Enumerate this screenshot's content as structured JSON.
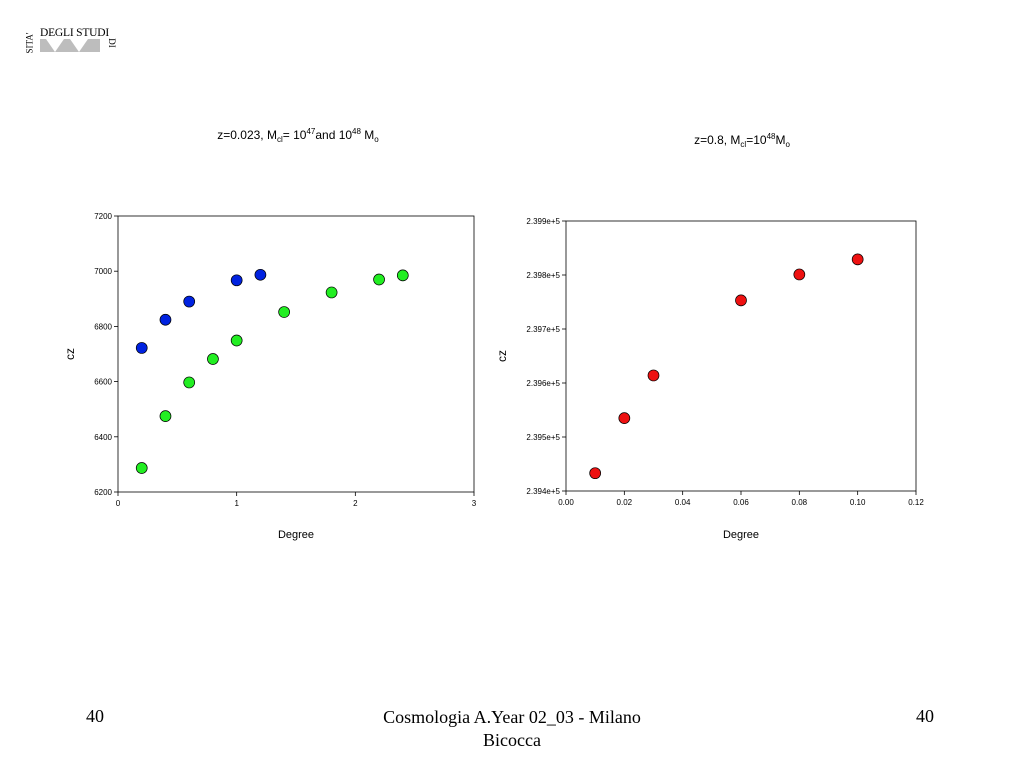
{
  "logo": {
    "line_top": "DEGLI STUDI",
    "left_vertical": "SITA'",
    "right_vertical": "DI"
  },
  "footer": {
    "page_left": "40",
    "center": "Cosmologia A.Year 02_03 - Milano Bicocca",
    "page_right": "40"
  },
  "chart_data": [
    {
      "type": "scatter",
      "title": {
        "parts": [
          {
            "t": "z=0.023, M"
          },
          {
            "t": "cl",
            "sub": true
          },
          {
            "t": "= 10"
          },
          {
            "t": "47",
            "sup": true
          },
          {
            "t": "and 10"
          },
          {
            "t": "48",
            "sup": true
          },
          {
            "t": " M"
          },
          {
            "t": "o",
            "sub": true
          }
        ]
      },
      "xlabel": "Degree",
      "ylabel": "cz",
      "xlim": [
        0,
        3
      ],
      "ylim": [
        6200,
        7200
      ],
      "xticks": [
        0,
        1,
        2,
        3
      ],
      "xtick_labels": [
        "0",
        "1",
        "2",
        "3"
      ],
      "yticks": [
        6200,
        6400,
        6600,
        6800,
        7000,
        7200
      ],
      "ytick_labels": [
        "6200",
        "6400",
        "6600",
        "6800",
        "7000",
        "7200"
      ],
      "grid": false,
      "series": [
        {
          "color": "#0022e0",
          "points": [
            [
              0.2,
              6722
            ],
            [
              0.4,
              6824
            ],
            [
              0.6,
              6890
            ],
            [
              1.0,
              6967
            ],
            [
              1.2,
              6987
            ]
          ]
        },
        {
          "color": "#22ee22",
          "points": [
            [
              0.2,
              6287
            ],
            [
              0.4,
              6475
            ],
            [
              0.6,
              6597
            ],
            [
              0.8,
              6682
            ],
            [
              1.0,
              6749
            ],
            [
              1.4,
              6852
            ],
            [
              1.8,
              6923
            ],
            [
              2.2,
              6970
            ],
            [
              2.4,
              6985
            ]
          ]
        }
      ]
    },
    {
      "type": "scatter",
      "title": {
        "parts": [
          {
            "t": "z=0.8, M"
          },
          {
            "t": "cl",
            "sub": true
          },
          {
            "t": "=10"
          },
          {
            "t": "48",
            "sup": true
          },
          {
            "t": "M"
          },
          {
            "t": "o",
            "sub": true
          }
        ]
      },
      "xlabel": "Degree",
      "ylabel": "cz",
      "xlim": [
        0.0,
        0.12
      ],
      "ylim": [
        239400,
        239900
      ],
      "xticks": [
        0.0,
        0.02,
        0.04,
        0.06,
        0.08,
        0.1,
        0.12
      ],
      "xtick_labels": [
        "0.00",
        "0.02",
        "0.04",
        "0.06",
        "0.08",
        "0.10",
        "0.12"
      ],
      "yticks": [
        239400,
        239500,
        239600,
        239700,
        239800,
        239900
      ],
      "ytick_labels": [
        "2.394e+5",
        "2.395e+5",
        "2.396e+5",
        "2.397e+5",
        "2.398e+5",
        "2.399e+5"
      ],
      "grid": false,
      "series": [
        {
          "color": "#ee1111",
          "points": [
            [
              0.01,
              239433
            ],
            [
              0.02,
              239535
            ],
            [
              0.03,
              239614
            ],
            [
              0.06,
              239753
            ],
            [
              0.08,
              239801
            ],
            [
              0.1,
              239829
            ]
          ]
        }
      ]
    }
  ]
}
